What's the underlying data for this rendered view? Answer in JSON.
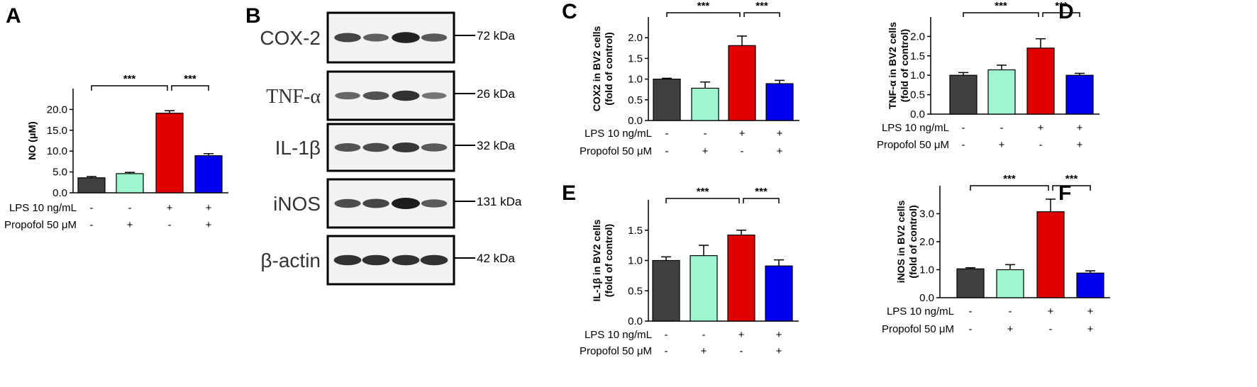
{
  "colors": {
    "groups": [
      "#404040",
      "#9ef5d0",
      "#e00000",
      "#0000ee"
    ],
    "axis": "#000000",
    "blot_bg": "#f2f2f2",
    "band": "#111111"
  },
  "conditions": {
    "rows": [
      {
        "label": "LPS 10 ng/mL",
        "signs": [
          "-",
          "-",
          "+",
          "+"
        ]
      },
      {
        "label": "Propofol 50 μM",
        "signs": [
          "-",
          "+",
          "-",
          "+"
        ]
      }
    ]
  },
  "significance": {
    "label": "***"
  },
  "chart_data": [
    {
      "panel": "A",
      "type": "bar",
      "title": "",
      "xlabel": "",
      "ylabel": "NO (μM)",
      "ylim": [
        0,
        25
      ],
      "yticks": [
        "0.0",
        "5.0",
        "10.0",
        "15.0",
        "20.0"
      ],
      "ytick_values": [
        0,
        5,
        10,
        15,
        20
      ],
      "values": [
        3.6,
        4.6,
        19.1,
        8.9
      ],
      "errors": [
        0.3,
        0.3,
        0.6,
        0.5
      ],
      "significance": [
        "***",
        "***"
      ]
    },
    {
      "panel": "C",
      "type": "bar",
      "title": "",
      "xlabel": "",
      "ylabel": "COX2 in BV2 cells (fold of control)",
      "ylim": [
        0,
        2.5
      ],
      "yticks": [
        "0.0",
        "0.5",
        "1.0",
        "1.5",
        "2.0"
      ],
      "ytick_values": [
        0,
        0.5,
        1.0,
        1.5,
        2.0
      ],
      "values": [
        1.0,
        0.78,
        1.81,
        0.89
      ],
      "errors": [
        0.02,
        0.15,
        0.23,
        0.08
      ],
      "significance": [
        "***",
        "***"
      ]
    },
    {
      "panel": "D",
      "type": "bar",
      "title": "",
      "xlabel": "",
      "ylabel": "TNF-α in BV2 cells (fold of control)",
      "ylim": [
        0,
        2.5
      ],
      "yticks": [
        "0.0",
        "0.5",
        "1.0",
        "1.5",
        "2.0"
      ],
      "ytick_values": [
        0,
        0.5,
        1.0,
        1.5,
        2.0
      ],
      "values": [
        1.0,
        1.14,
        1.7,
        1.0
      ],
      "errors": [
        0.07,
        0.12,
        0.24,
        0.05
      ],
      "significance": [
        "***",
        "***"
      ]
    },
    {
      "panel": "E",
      "type": "bar",
      "title": "",
      "xlabel": "",
      "ylabel": "IL-1β in BV2 cells (fold of control)",
      "ylim": [
        0,
        2.0
      ],
      "yticks": [
        "0.0",
        "0.5",
        "1.0",
        "1.5"
      ],
      "ytick_values": [
        0,
        0.5,
        1.0,
        1.5
      ],
      "values": [
        1.0,
        1.08,
        1.42,
        0.91
      ],
      "errors": [
        0.06,
        0.17,
        0.08,
        0.1
      ],
      "significance": [
        "***",
        "***"
      ]
    },
    {
      "panel": "F",
      "type": "bar",
      "title": "",
      "xlabel": "",
      "ylabel": "iNOS in BV2 cells (fold of control)",
      "ylim": [
        0,
        4.0
      ],
      "yticks": [
        "0.0",
        "1.0",
        "2.0",
        "3.0"
      ],
      "ytick_values": [
        0,
        1.0,
        2.0,
        3.0
      ],
      "values": [
        1.03,
        1.0,
        3.07,
        0.88
      ],
      "errors": [
        0.04,
        0.18,
        0.45,
        0.08
      ],
      "significance": [
        "***",
        "***"
      ]
    }
  ],
  "blot": {
    "panel": "B",
    "rows": [
      {
        "name": "COX-2",
        "kda": "72 kDa",
        "serif": false,
        "intensity": [
          0.7,
          0.5,
          0.95,
          0.55
        ]
      },
      {
        "name": "TNF-α",
        "kda": "26 kDa",
        "serif": true,
        "intensity": [
          0.45,
          0.6,
          0.85,
          0.35
        ]
      },
      {
        "name": "IL-1β",
        "kda": "32 kDa",
        "serif": false,
        "intensity": [
          0.6,
          0.65,
          0.8,
          0.55
        ]
      },
      {
        "name": "iNOS",
        "kda": "131 kDa",
        "serif": false,
        "intensity": [
          0.65,
          0.7,
          1.0,
          0.55
        ]
      },
      {
        "name": "β-actin",
        "kda": "42 kDa",
        "serif": false,
        "intensity": [
          0.85,
          0.85,
          0.85,
          0.85
        ]
      }
    ]
  }
}
